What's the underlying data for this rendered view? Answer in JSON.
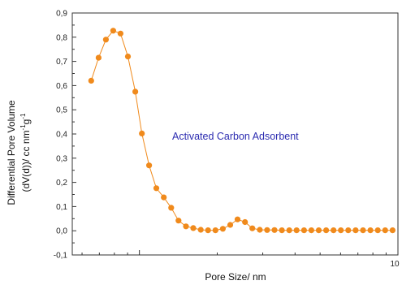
{
  "chart_data": {
    "type": "line",
    "title": "",
    "xlabel": "Pore Size/ nm",
    "ylabel": {
      "line1": "Differential Pore Volume",
      "line2_prefix": "(dV(d))/ cc nm",
      "sup1": "-1",
      "mid": "g",
      "sup2": "-1"
    },
    "x_scale": "log",
    "xlim": [
      0.55,
      10
    ],
    "ylim": [
      -0.1,
      0.9
    ],
    "y_ticks": [
      {
        "value": -0.1,
        "label": "-0,1"
      },
      {
        "value": 0.0,
        "label": "0,0"
      },
      {
        "value": 0.1,
        "label": "0,1"
      },
      {
        "value": 0.2,
        "label": "0,2"
      },
      {
        "value": 0.3,
        "label": "0,3"
      },
      {
        "value": 0.4,
        "label": "0,4"
      },
      {
        "value": 0.5,
        "label": "0,5"
      },
      {
        "value": 0.6,
        "label": "0,6"
      },
      {
        "value": 0.7,
        "label": "0,7"
      },
      {
        "value": 0.8,
        "label": "0,8"
      },
      {
        "value": 0.9,
        "label": "0,9"
      }
    ],
    "x_major_ticks": [
      {
        "value": 1,
        "label": ""
      },
      {
        "value": 10,
        "label": "10"
      }
    ],
    "x_minor_ticks": [
      0.6,
      0.7,
      0.8,
      0.9,
      2,
      3,
      4,
      5,
      6,
      7,
      8,
      9
    ],
    "annotation": "Activated Carbon Adsorbent",
    "annotation_color": "#2b2bb0",
    "series_color": "#f08a1c",
    "series": [
      {
        "name": "",
        "x": [
          0.651,
          0.695,
          0.742,
          0.792,
          0.845,
          0.903,
          0.964,
          1.022,
          1.09,
          1.163,
          1.243,
          1.327,
          1.417,
          1.514,
          1.616,
          1.727,
          1.843,
          1.968,
          2.102,
          2.246,
          2.397,
          2.561,
          2.734,
          2.921,
          3.119,
          3.33,
          3.556,
          3.799,
          4.056,
          4.333,
          4.626,
          4.939,
          5.275,
          5.634,
          6.015,
          6.425,
          6.861,
          7.328,
          7.825,
          8.357,
          8.925,
          9.531
        ],
        "y": [
          0.62,
          0.715,
          0.79,
          0.827,
          0.815,
          0.72,
          0.575,
          0.402,
          0.27,
          0.176,
          0.138,
          0.095,
          0.042,
          0.018,
          0.011,
          0.004,
          0.002,
          0.002,
          0.008,
          0.024,
          0.047,
          0.036,
          0.01,
          0.004,
          0.003,
          0.003,
          0.002,
          0.002,
          0.002,
          0.002,
          0.002,
          0.002,
          0.002,
          0.002,
          0.002,
          0.002,
          0.002,
          0.002,
          0.002,
          0.002,
          0.002,
          0.002
        ]
      }
    ]
  }
}
